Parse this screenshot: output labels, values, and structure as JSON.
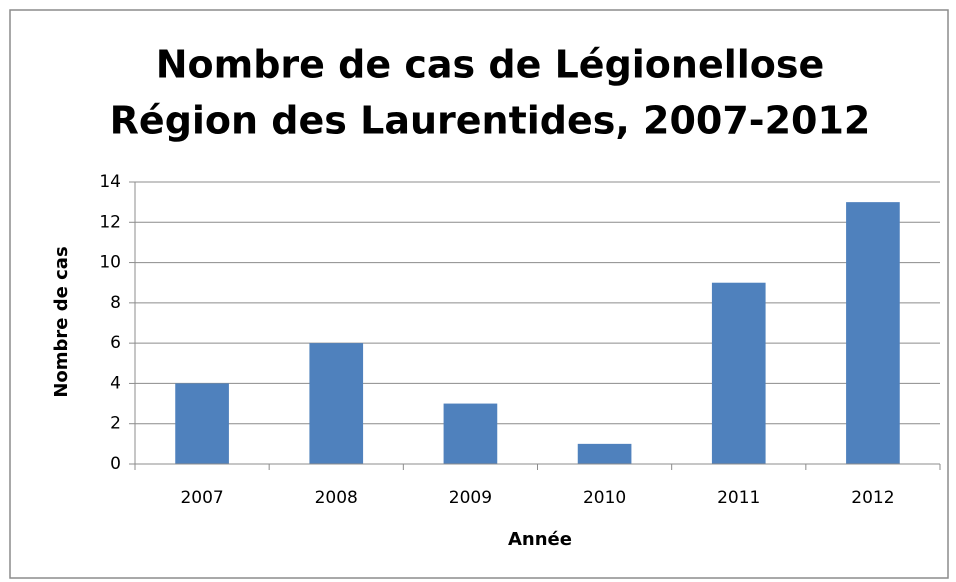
{
  "chart_data": {
    "type": "bar",
    "title": [
      "Nombre de cas de Légionellose",
      "Région des Laurentides, 2007-2012"
    ],
    "x_label": "Année",
    "y_label": "Nombre de cas",
    "categories": [
      "2007",
      "2008",
      "2009",
      "2010",
      "2011",
      "2012"
    ],
    "values": [
      4,
      6,
      3,
      1,
      9,
      13
    ],
    "color": "#4f81bd",
    "ylim": [
      0,
      14
    ],
    "yticks": [
      0,
      2,
      4,
      6,
      8,
      10,
      12,
      14
    ],
    "grid": true
  }
}
